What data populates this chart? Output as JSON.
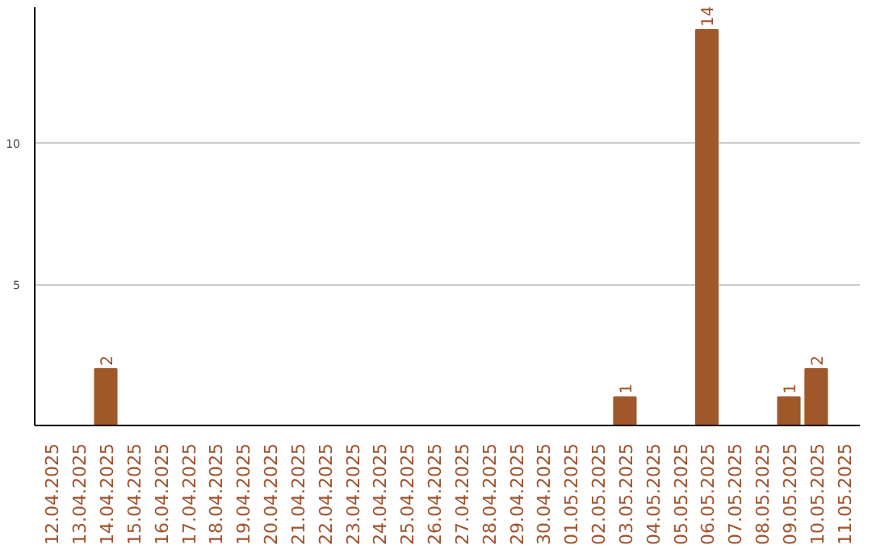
{
  "chart_data": {
    "type": "bar",
    "categories": [
      "12.04.2025",
      "13.04.2025",
      "14.04.2025",
      "15.04.2025",
      "16.04.2025",
      "17.04.2025",
      "18.04.2025",
      "19.04.2025",
      "20.04.2025",
      "21.04.2025",
      "22.04.2025",
      "23.04.2025",
      "24.04.2025",
      "25.04.2025",
      "26.04.2025",
      "27.04.2025",
      "28.04.2025",
      "29.04.2025",
      "30.04.2025",
      "01.05.2025",
      "02.05.2025",
      "03.05.2025",
      "04.05.2025",
      "05.05.2025",
      "06.05.2025",
      "07.05.2025",
      "08.05.2025",
      "09.05.2025",
      "10.05.2025",
      "11.05.2025"
    ],
    "values": [
      0,
      0,
      2,
      0,
      0,
      0,
      0,
      0,
      0,
      0,
      0,
      0,
      0,
      0,
      0,
      0,
      0,
      0,
      0,
      0,
      0,
      1,
      0,
      0,
      14,
      0,
      0,
      1,
      2,
      0
    ],
    "value_labels": [
      null,
      null,
      "2",
      null,
      null,
      null,
      null,
      null,
      null,
      null,
      null,
      null,
      null,
      null,
      null,
      null,
      null,
      null,
      null,
      null,
      null,
      "1",
      null,
      null,
      "14",
      null,
      null,
      "1",
      "2",
      null
    ],
    "color": "#a0582a",
    "ylim": [
      0,
      14.8
    ],
    "yticks": [
      5,
      10
    ],
    "grid": "y"
  }
}
